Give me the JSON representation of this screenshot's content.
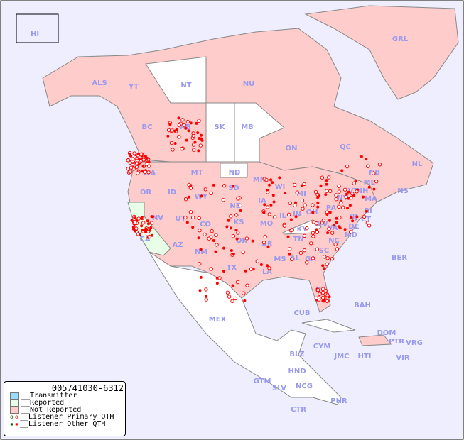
{
  "map": {
    "colors": {
      "ocean": "#eeeeff",
      "not_reported": "#ffcccc",
      "reported": "#e6ffe6",
      "transmitter": "#99ddff",
      "unlisted": "#ffffff",
      "marker": "#ff0000",
      "label": "#9999ee"
    },
    "region_labels": [
      "HI",
      "ALS",
      "YT",
      "NT",
      "NU",
      "GRL",
      "BC",
      "AB",
      "SK",
      "MB",
      "ON",
      "QC",
      "NL",
      "NB",
      "NS",
      "WA",
      "OR",
      "ID",
      "MT",
      "ND",
      "WY",
      "SD",
      "MN",
      "WI",
      "MI",
      "NE",
      "IA",
      "IL",
      "IN",
      "OH",
      "PA",
      "NY",
      "VT",
      "NH",
      "ME",
      "MA",
      "RI",
      "CT",
      "NJ",
      "DE",
      "MD",
      "WV",
      "VA",
      "KY",
      "NV",
      "UT",
      "CO",
      "KS",
      "MO",
      "CA",
      "AZ",
      "NM",
      "OK",
      "AR",
      "TN",
      "NC",
      "SC",
      "MS",
      "AL",
      "GA",
      "TX",
      "LA",
      "FL",
      "MEX",
      "CUB",
      "BAH",
      "BER",
      "DOM",
      "PTR",
      "VRG",
      "CYM",
      "JMC",
      "HTI",
      "VIR",
      "BLZ",
      "HND",
      "GTM",
      "SLV",
      "NCG",
      "PNR",
      "CTR"
    ]
  },
  "legend": {
    "title": "005741030-6312",
    "items": [
      {
        "label": "__Transmitter"
      },
      {
        "label": "__Reported"
      },
      {
        "label": "__Not Reported"
      },
      {
        "label": "__Listener Primary QTH"
      },
      {
        "label": "__Listener Other QTH"
      }
    ]
  }
}
